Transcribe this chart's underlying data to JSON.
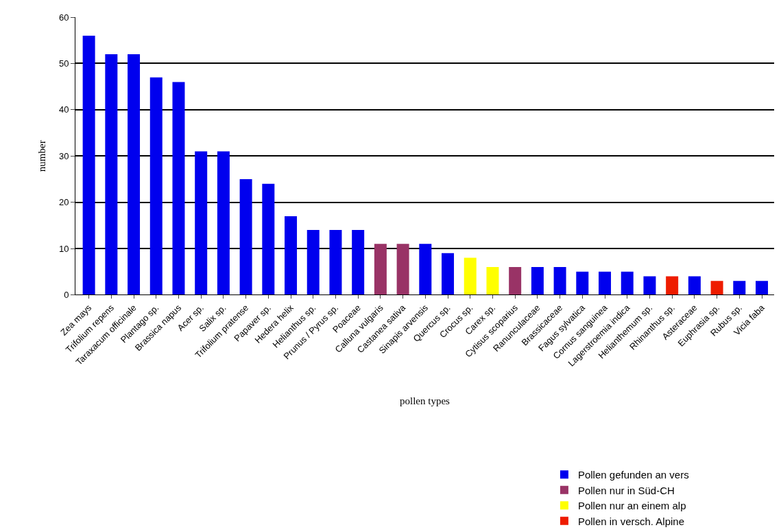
{
  "chart_data": {
    "type": "bar",
    "xlabel": "pollen types",
    "ylabel": "number",
    "categories": [
      "Zea mays",
      "Trifolium repens",
      "Taraxacum officinale",
      "Plantago sp.",
      "Brassica napus",
      "Acer sp.",
      "Salix sp.",
      "Trifolium pratense",
      "Papaver sp.",
      "Hedera helix",
      "Helianthus sp.",
      "Prunus / Pyrus sp.",
      "Poaceae",
      "Calluna vulgaris",
      "Castanea sativa",
      "Sinapis arvensis",
      "Quercus sp.",
      "Crocus sp.",
      "Carex sp.",
      "Cytisus scoparius",
      "Ranunculaceae",
      "Brassicaceae",
      "Fagus sylvatica",
      "Cornus sanguinea",
      "Lagerstroemia indica",
      "Helianthemum sp.",
      "Rhinanthus sp.",
      "Asteraceae",
      "Euphrasia sp.",
      "Rubus sp.",
      "Vicia faba"
    ],
    "series": [
      {
        "name": "Pollen gefunden an vers",
        "color": "#0000ee",
        "values": [
          56,
          52,
          52,
          47,
          46,
          31,
          31,
          25,
          24,
          17,
          14,
          14,
          14,
          null,
          null,
          11,
          9,
          null,
          null,
          null,
          6,
          6,
          5,
          5,
          5,
          4,
          null,
          4,
          null,
          3,
          3
        ]
      },
      {
        "name": "Pollen nur in Süd-CH",
        "color": "#993366",
        "values": [
          null,
          null,
          null,
          null,
          null,
          null,
          null,
          null,
          null,
          null,
          null,
          null,
          null,
          11,
          11,
          null,
          null,
          null,
          null,
          6,
          null,
          null,
          null,
          null,
          null,
          null,
          null,
          null,
          null,
          null,
          null
        ]
      },
      {
        "name": "Pollen nur an einem alp",
        "color": "#ffff00",
        "values": [
          null,
          null,
          null,
          null,
          null,
          null,
          null,
          null,
          null,
          null,
          null,
          null,
          null,
          null,
          null,
          null,
          null,
          8,
          6,
          null,
          null,
          null,
          null,
          null,
          null,
          null,
          null,
          null,
          null,
          null,
          null
        ]
      },
      {
        "name": "Pollen in versch. Alpine",
        "color": "#ee1c00",
        "values": [
          null,
          null,
          null,
          null,
          null,
          null,
          null,
          null,
          null,
          null,
          null,
          null,
          null,
          null,
          null,
          null,
          null,
          null,
          null,
          null,
          null,
          null,
          null,
          null,
          null,
          null,
          4,
          null,
          3,
          null,
          null
        ]
      }
    ],
    "ylim": [
      0,
      60
    ],
    "yticks": [
      0,
      10,
      20,
      30,
      40,
      50,
      60
    ],
    "grid": "y",
    "legend": "bottom right"
  }
}
